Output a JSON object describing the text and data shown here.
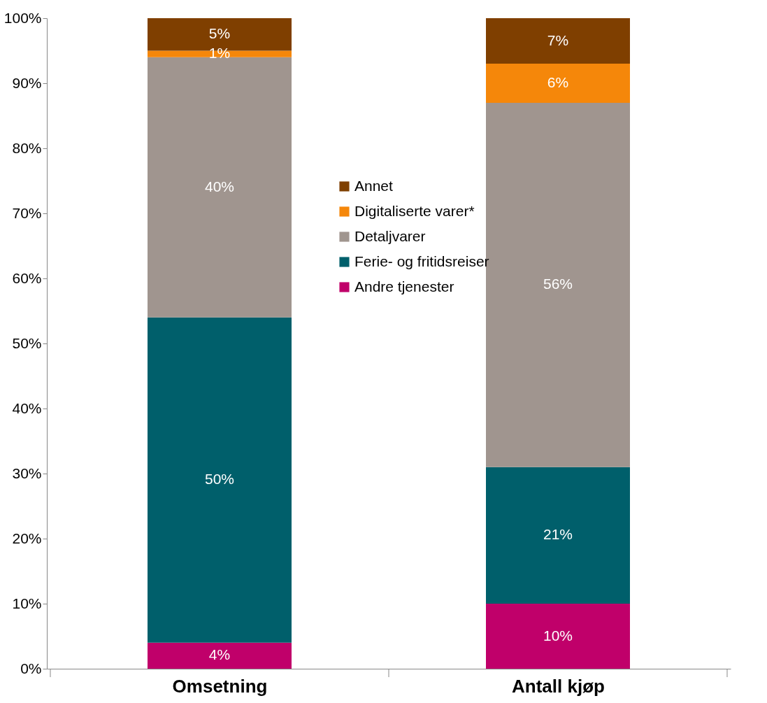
{
  "chart_data": {
    "type": "bar",
    "stacked": true,
    "categories": [
      "Omsetning",
      "Antall kjøp"
    ],
    "series": [
      {
        "name": "Andre tjenester",
        "color": "#c0006a",
        "values": [
          4,
          10
        ],
        "value_labels": [
          "4%",
          "10%"
        ]
      },
      {
        "name": "Ferie- og fritidsreiser",
        "color": "#005f6b",
        "values": [
          50,
          21
        ],
        "value_labels": [
          "50%",
          "21%"
        ]
      },
      {
        "name": "Detaljvarer",
        "color": "#a0958f",
        "values": [
          40,
          56
        ],
        "value_labels": [
          "40%",
          "56%"
        ]
      },
      {
        "name": "Digitaliserte varer*",
        "color": "#f5870a",
        "values": [
          1,
          6
        ],
        "value_labels": [
          "1%",
          "6%"
        ]
      },
      {
        "name": "Annet",
        "color": "#7f3f00",
        "values": [
          5,
          7
        ],
        "value_labels": [
          "5%",
          "7%"
        ]
      }
    ],
    "ylim": [
      0,
      100
    ],
    "yticks": [
      {
        "value": 0,
        "label": "0%"
      },
      {
        "value": 10,
        "label": "10%"
      },
      {
        "value": 20,
        "label": "20%"
      },
      {
        "value": 30,
        "label": "30%"
      },
      {
        "value": 40,
        "label": "40%"
      },
      {
        "value": 50,
        "label": "50%"
      },
      {
        "value": 60,
        "label": "60%"
      },
      {
        "value": 70,
        "label": "70%"
      },
      {
        "value": 80,
        "label": "80%"
      },
      {
        "value": 90,
        "label": "90%"
      },
      {
        "value": 100,
        "label": "100%"
      }
    ],
    "grid": false,
    "legend": "center"
  }
}
